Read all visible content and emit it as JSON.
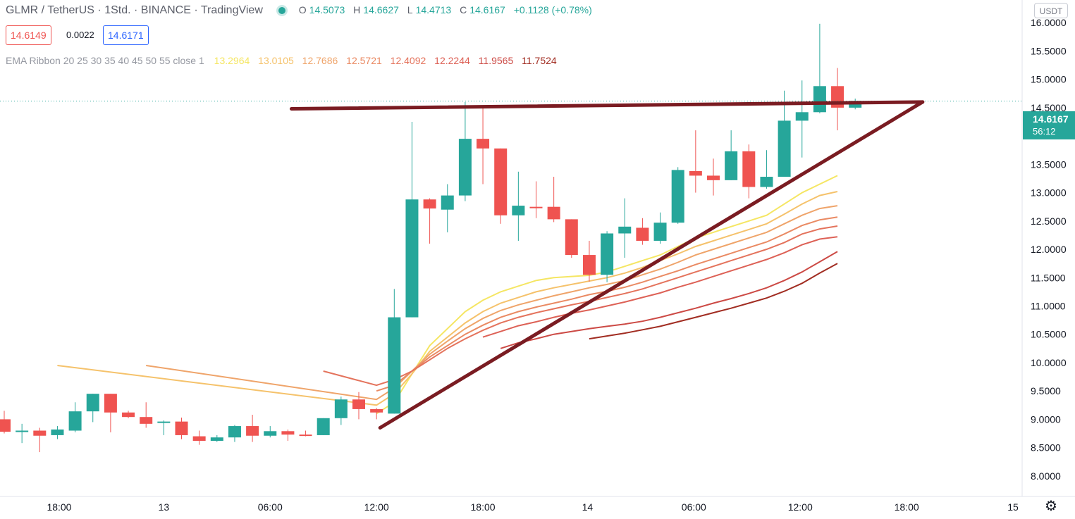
{
  "header": {
    "symbol": "GLMR / TetherUS · 1Std. · BINANCE · TradingView",
    "ohlc": {
      "o_label": "O",
      "o": "14.5073",
      "h_label": "H",
      "h": "14.6627",
      "l_label": "L",
      "l": "14.4713",
      "c_label": "C",
      "c": "14.6167",
      "change": "+0.1128 (+0.78%)"
    },
    "bid": "14.6149",
    "spread": "0.0022",
    "ask": "14.6171"
  },
  "ema_ribbon": {
    "name": "EMA Ribbon 20 25 30 35 40 45 50 55 close 1",
    "values": [
      "13.2964",
      "13.0105",
      "12.7686",
      "12.5721",
      "12.4092",
      "12.2244",
      "11.9565",
      "11.7524"
    ],
    "colors": [
      "#f5e663",
      "#f5c26b",
      "#efa46a",
      "#ea8a63",
      "#e4735c",
      "#dd6156",
      "#cc4a45",
      "#a12d22"
    ]
  },
  "currency_badge": "USDT",
  "current_price": {
    "value": "14.6167",
    "countdown": "56:12",
    "color": "#26a69a"
  },
  "settings_icon": "gear-icon",
  "colors": {
    "up": "#26a69a",
    "down": "#ef5350",
    "trendline": "#7a1c22"
  },
  "chart_data": {
    "type": "candlestick",
    "title": "GLMR / TetherUS · 1Std. · BINANCE · TradingView",
    "ylim": [
      7.7,
      16.4
    ],
    "y_ticks": [
      "16.0000",
      "15.5000",
      "15.0000",
      "14.5000",
      "14.0000",
      "13.5000",
      "13.0000",
      "12.5000",
      "12.0000",
      "11.5000",
      "11.0000",
      "10.5000",
      "10.0000",
      "9.5000",
      "9.0000",
      "8.5000",
      "8.0000"
    ],
    "x_ticks": [
      "18:00",
      "13",
      "06:00",
      "12:00",
      "18:00",
      "14",
      "06:00",
      "12:00",
      "18:00",
      "15"
    ],
    "candles": [
      {
        "o": 9.0,
        "h": 9.15,
        "l": 8.75,
        "c": 8.78
      },
      {
        "o": 8.8,
        "h": 8.92,
        "l": 8.58,
        "c": 8.8
      },
      {
        "o": 8.8,
        "h": 8.85,
        "l": 8.42,
        "c": 8.71
      },
      {
        "o": 8.72,
        "h": 8.88,
        "l": 8.65,
        "c": 8.82
      },
      {
        "o": 8.8,
        "h": 9.3,
        "l": 8.77,
        "c": 9.14
      },
      {
        "o": 9.14,
        "h": 9.45,
        "l": 8.95,
        "c": 9.45
      },
      {
        "o": 9.45,
        "h": 9.45,
        "l": 8.77,
        "c": 9.12
      },
      {
        "o": 9.12,
        "h": 9.15,
        "l": 9.02,
        "c": 9.04
      },
      {
        "o": 9.04,
        "h": 9.3,
        "l": 8.85,
        "c": 8.92
      },
      {
        "o": 8.96,
        "h": 8.98,
        "l": 8.72,
        "c": 8.96
      },
      {
        "o": 8.96,
        "h": 9.03,
        "l": 8.65,
        "c": 8.72
      },
      {
        "o": 8.7,
        "h": 8.8,
        "l": 8.55,
        "c": 8.62
      },
      {
        "o": 8.62,
        "h": 8.72,
        "l": 8.6,
        "c": 8.68
      },
      {
        "o": 8.68,
        "h": 8.9,
        "l": 8.6,
        "c": 8.88
      },
      {
        "o": 8.88,
        "h": 9.08,
        "l": 8.6,
        "c": 8.71
      },
      {
        "o": 8.71,
        "h": 8.88,
        "l": 8.68,
        "c": 8.79
      },
      {
        "o": 8.79,
        "h": 8.82,
        "l": 8.62,
        "c": 8.73
      },
      {
        "o": 8.73,
        "h": 8.8,
        "l": 8.7,
        "c": 8.72
      },
      {
        "o": 8.72,
        "h": 9.02,
        "l": 8.72,
        "c": 9.02
      },
      {
        "o": 9.02,
        "h": 9.4,
        "l": 8.9,
        "c": 9.35
      },
      {
        "o": 9.35,
        "h": 9.48,
        "l": 9.0,
        "c": 9.18
      },
      {
        "o": 9.18,
        "h": 9.2,
        "l": 9.0,
        "c": 9.12
      },
      {
        "o": 9.1,
        "h": 11.3,
        "l": 9.1,
        "c": 10.8
      },
      {
        "o": 10.8,
        "h": 14.25,
        "l": 10.8,
        "c": 12.88
      },
      {
        "o": 12.88,
        "h": 12.9,
        "l": 12.1,
        "c": 12.72
      },
      {
        "o": 12.7,
        "h": 13.15,
        "l": 12.3,
        "c": 12.95
      },
      {
        "o": 12.95,
        "h": 14.6,
        "l": 12.85,
        "c": 13.95
      },
      {
        "o": 13.95,
        "h": 14.5,
        "l": 13.15,
        "c": 13.78
      },
      {
        "o": 13.78,
        "h": 13.78,
        "l": 12.45,
        "c": 12.6
      },
      {
        "o": 12.6,
        "h": 13.37,
        "l": 12.15,
        "c": 12.77
      },
      {
        "o": 12.75,
        "h": 13.2,
        "l": 12.55,
        "c": 12.73
      },
      {
        "o": 12.75,
        "h": 13.28,
        "l": 12.48,
        "c": 12.53
      },
      {
        "o": 12.53,
        "h": 12.53,
        "l": 11.85,
        "c": 11.9
      },
      {
        "o": 11.9,
        "h": 12.15,
        "l": 11.43,
        "c": 11.55
      },
      {
        "o": 11.55,
        "h": 12.32,
        "l": 11.42,
        "c": 12.28
      },
      {
        "o": 12.28,
        "h": 12.9,
        "l": 11.85,
        "c": 12.4
      },
      {
        "o": 12.38,
        "h": 12.55,
        "l": 12.08,
        "c": 12.15
      },
      {
        "o": 12.15,
        "h": 12.65,
        "l": 12.1,
        "c": 12.47
      },
      {
        "o": 12.47,
        "h": 13.45,
        "l": 12.45,
        "c": 13.4
      },
      {
        "o": 13.38,
        "h": 14.1,
        "l": 13.0,
        "c": 13.3
      },
      {
        "o": 13.3,
        "h": 13.6,
        "l": 12.95,
        "c": 13.22
      },
      {
        "o": 13.22,
        "h": 14.1,
        "l": 13.22,
        "c": 13.73
      },
      {
        "o": 13.73,
        "h": 13.85,
        "l": 12.9,
        "c": 13.1
      },
      {
        "o": 13.1,
        "h": 13.75,
        "l": 13.07,
        "c": 13.28
      },
      {
        "o": 13.28,
        "h": 14.8,
        "l": 13.28,
        "c": 14.27
      },
      {
        "o": 14.27,
        "h": 14.98,
        "l": 13.62,
        "c": 14.42
      },
      {
        "o": 14.42,
        "h": 15.98,
        "l": 14.4,
        "c": 14.88
      },
      {
        "o": 14.88,
        "h": 15.2,
        "l": 14.1,
        "c": 14.5
      },
      {
        "o": 14.5,
        "h": 14.66,
        "l": 14.47,
        "c": 14.62
      }
    ],
    "ema_series": [
      {
        "values": [
          null,
          null,
          null,
          null,
          null,
          null,
          null,
          null,
          null,
          null,
          null,
          null,
          null,
          null,
          null,
          null,
          null,
          null,
          null,
          null,
          null,
          9.1,
          9.3,
          9.8,
          10.3,
          10.6,
          10.9,
          11.1,
          11.25,
          11.35,
          11.45,
          11.5,
          11.52,
          11.54,
          11.6,
          11.7,
          11.8,
          11.9,
          12.05,
          12.2,
          12.3,
          12.4,
          12.5,
          12.6,
          12.8,
          13.0,
          13.15,
          13.3
        ]
      },
      {
        "values": [
          null,
          null,
          null,
          9.95,
          null,
          null,
          null,
          null,
          null,
          null,
          null,
          null,
          null,
          null,
          null,
          null,
          null,
          null,
          null,
          null,
          null,
          9.25,
          9.45,
          9.8,
          10.2,
          10.45,
          10.7,
          10.9,
          11.05,
          11.15,
          11.25,
          11.32,
          11.38,
          11.44,
          11.5,
          11.58,
          11.68,
          11.8,
          11.92,
          12.05,
          12.15,
          12.25,
          12.35,
          12.45,
          12.62,
          12.8,
          12.95,
          13.02
        ]
      },
      {
        "values": [
          null,
          null,
          null,
          null,
          null,
          null,
          null,
          null,
          9.95,
          null,
          null,
          null,
          null,
          null,
          null,
          null,
          null,
          null,
          null,
          null,
          null,
          9.35,
          9.55,
          9.85,
          10.15,
          10.38,
          10.6,
          10.78,
          10.92,
          11.02,
          11.1,
          11.18,
          11.25,
          11.32,
          11.38,
          11.45,
          11.55,
          11.65,
          11.77,
          11.9,
          12.0,
          12.1,
          12.2,
          12.3,
          12.45,
          12.6,
          12.72,
          12.77
        ]
      },
      {
        "values": [
          null,
          null,
          null,
          null,
          null,
          null,
          null,
          null,
          null,
          null,
          null,
          null,
          null,
          null,
          null,
          null,
          null,
          null,
          null,
          null,
          null,
          9.5,
          9.6,
          9.85,
          10.1,
          10.3,
          10.5,
          10.66,
          10.8,
          10.9,
          10.98,
          11.05,
          11.12,
          11.2,
          11.26,
          11.33,
          11.42,
          11.52,
          11.62,
          11.73,
          11.83,
          11.93,
          12.03,
          12.13,
          12.27,
          12.42,
          12.52,
          12.57
        ]
      },
      {
        "values": [
          null,
          null,
          null,
          null,
          null,
          null,
          null,
          null,
          null,
          null,
          null,
          null,
          null,
          null,
          null,
          null,
          null,
          null,
          9.85,
          null,
          null,
          9.6,
          9.7,
          9.85,
          10.05,
          10.25,
          10.42,
          10.57,
          10.7,
          10.8,
          10.88,
          10.95,
          11.02,
          11.08,
          11.15,
          11.22,
          11.3,
          11.4,
          11.5,
          11.6,
          11.7,
          11.8,
          11.9,
          12.0,
          12.12,
          12.27,
          12.36,
          12.41
        ]
      },
      {
        "values": [
          null,
          null,
          null,
          null,
          null,
          null,
          null,
          null,
          null,
          null,
          null,
          null,
          null,
          null,
          null,
          null,
          null,
          null,
          null,
          null,
          null,
          null,
          null,
          null,
          null,
          null,
          null,
          10.45,
          10.55,
          10.65,
          10.72,
          10.8,
          10.87,
          10.93,
          11.0,
          11.07,
          11.15,
          11.23,
          11.33,
          11.42,
          11.52,
          11.62,
          11.72,
          11.82,
          11.94,
          12.08,
          12.18,
          12.22
        ]
      },
      {
        "values": [
          null,
          null,
          null,
          null,
          null,
          null,
          null,
          null,
          null,
          null,
          null,
          null,
          null,
          null,
          null,
          null,
          null,
          null,
          null,
          null,
          null,
          null,
          null,
          null,
          null,
          null,
          null,
          null,
          10.25,
          10.35,
          10.42,
          10.5,
          10.55,
          10.6,
          10.64,
          10.68,
          10.73,
          10.8,
          10.88,
          10.96,
          11.05,
          11.13,
          11.22,
          11.32,
          11.45,
          11.6,
          11.78,
          11.96
        ]
      },
      {
        "values": [
          null,
          null,
          null,
          null,
          null,
          null,
          null,
          null,
          null,
          null,
          null,
          null,
          null,
          null,
          null,
          null,
          null,
          null,
          null,
          null,
          null,
          null,
          null,
          null,
          null,
          null,
          null,
          null,
          null,
          null,
          null,
          null,
          null,
          10.42,
          10.47,
          10.52,
          10.58,
          10.64,
          10.72,
          10.8,
          10.88,
          10.96,
          11.05,
          11.14,
          11.26,
          11.4,
          11.58,
          11.75
        ]
      }
    ],
    "trendlines": [
      {
        "from_index": 16.2,
        "from_y": 14.48,
        "to_index": 51.8,
        "to_y": 14.6
      },
      {
        "from_index": 21.2,
        "from_y": 8.85,
        "to_index": 51.8,
        "to_y": 14.6
      }
    ],
    "grid": false
  }
}
